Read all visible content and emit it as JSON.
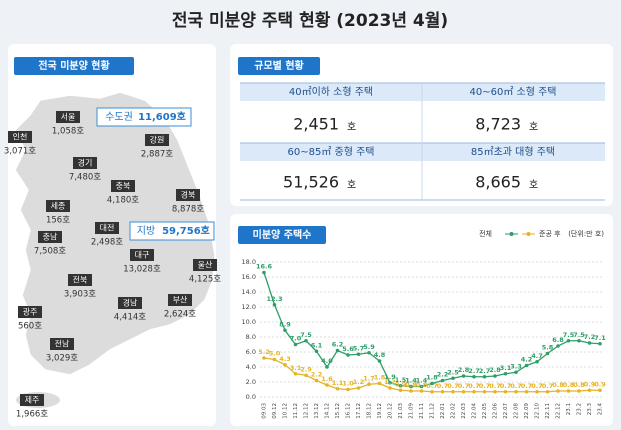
{
  "title": "전국 미분양 주택 현황 (2023년 4월)",
  "map": {
    "heading": "전국 미분양 현황",
    "capital": {
      "name": "수도권",
      "value": "11,609호"
    },
    "provinces": {
      "name": "지방",
      "value": "59,756호"
    },
    "regions": [
      {
        "name": "서울",
        "value": "1,058호"
      },
      {
        "name": "인천",
        "value": "3,071호"
      },
      {
        "name": "경기",
        "value": "7,480호"
      },
      {
        "name": "강원",
        "value": "2,887호"
      },
      {
        "name": "충북",
        "value": "4,180호"
      },
      {
        "name": "세종",
        "value": "156호"
      },
      {
        "name": "충남",
        "value": "7,508호"
      },
      {
        "name": "대전",
        "value": "2,498호"
      },
      {
        "name": "경북",
        "value": "8,878호"
      },
      {
        "name": "전북",
        "value": "3,903호"
      },
      {
        "name": "대구",
        "value": "13,028호"
      },
      {
        "name": "울산",
        "value": "4,125호"
      },
      {
        "name": "광주",
        "value": "560호"
      },
      {
        "name": "경남",
        "value": "4,414호"
      },
      {
        "name": "부산",
        "value": "2,624호"
      },
      {
        "name": "전남",
        "value": "3,029호"
      },
      {
        "name": "제주",
        "value": "1,966호"
      }
    ]
  },
  "size": {
    "heading": "규모별 현황",
    "items": [
      {
        "label": "40㎡이하 소형 주택",
        "value": "2,451",
        "unit": "호"
      },
      {
        "label": "40~60㎡ 소형 주택",
        "value": "8,723",
        "unit": "호"
      },
      {
        "label": "60~85㎡ 중형 주택",
        "value": "51,526",
        "unit": "호"
      },
      {
        "label": "85㎡초과 대형 주택",
        "value": "8,665",
        "unit": "호"
      }
    ]
  },
  "chart_data": {
    "type": "line",
    "title": "미분양 주택수",
    "note": "(단위:만 호)",
    "categories": [
      "09.03",
      "09.12",
      "10.12",
      "11.12",
      "12.12",
      "13.12",
      "14.12",
      "15.12",
      "16.12",
      "17.12",
      "18.12",
      "19.12",
      "20.12",
      "21.03",
      "21.09",
      "21.11",
      "21.12",
      "22.01",
      "22.02",
      "22.03",
      "22.04",
      "22.05",
      "22.06",
      "22.07",
      "22.08",
      "22.09",
      "22.10",
      "22.11",
      "22.12",
      "23.1",
      "23.2",
      "23.3",
      "23.4"
    ],
    "series": [
      {
        "name": "전체",
        "color": "#2e9e68",
        "values": [
          16.6,
          12.3,
          8.9,
          7.0,
          7.5,
          6.1,
          4.0,
          6.2,
          5.6,
          5.7,
          5.9,
          4.8,
          1.9,
          1.5,
          1.4,
          1.4,
          1.8,
          2.2,
          2.5,
          2.8,
          2.7,
          2.7,
          2.8,
          3.1,
          3.3,
          4.2,
          4.7,
          5.8,
          6.8,
          7.5,
          7.5,
          7.2,
          7.1
        ],
        "value_labels": [
          "16.6",
          "12.3",
          "8.9",
          "7.0",
          "7.5",
          "6.1",
          "4.0",
          "6.2",
          "5.6",
          "5.7",
          "5.9",
          "4.8",
          "1.9",
          "1.5",
          "1.4",
          "1.4",
          "1.8",
          "2.2",
          "2.5",
          "2.8",
          "2.7",
          "2.7",
          "2.8",
          "3.1",
          "3.3",
          "4.2",
          "4.7",
          "5.8",
          "6.8",
          "7.5",
          "7.5",
          "7.2",
          "7.1"
        ]
      },
      {
        "name": "준공 후",
        "color": "#e6b325",
        "values": [
          5.2,
          5.0,
          4.3,
          3.1,
          2.9,
          2.2,
          1.6,
          1.1,
          1.0,
          1.2,
          1.7,
          1.8,
          1.2,
          0.9,
          0.8,
          0.8,
          0.7,
          0.7,
          0.7,
          0.7,
          0.7,
          0.7,
          0.7,
          0.7,
          0.7,
          0.7,
          0.7,
          0.7,
          0.8,
          0.8,
          0.8,
          0.9,
          0.9
        ],
        "value_labels": [
          "5.2",
          "5.0",
          "4.3",
          "3.1",
          "2.9",
          "2.2",
          "1.6",
          "1.1",
          "1.0",
          "1.2",
          "1.7",
          "1.8",
          "1.2",
          "0.9",
          "0.8",
          "0.8",
          "0.7",
          "0.7",
          "0.7",
          "0.7",
          "0.7",
          "0.7",
          "0.7",
          "0.7",
          "0.7",
          "0.7",
          "0.7",
          "0.7",
          "0.8",
          "0.8",
          "0.8",
          "0.9",
          "0.9"
        ]
      }
    ],
    "ylim": [
      0,
      18
    ],
    "yticks": [
      {
        "value": 0,
        "label": "0.0"
      },
      {
        "value": 2,
        "label": "2.0"
      },
      {
        "value": 4,
        "label": "4.0"
      },
      {
        "value": 6,
        "label": "6.0"
      },
      {
        "value": 8,
        "label": "8.0"
      },
      {
        "value": 10,
        "label": "10.0"
      },
      {
        "value": 12,
        "label": "12.0"
      },
      {
        "value": 14,
        "label": "14.0"
      },
      {
        "value": 16,
        "label": "16.0"
      },
      {
        "value": 18,
        "label": "18.0"
      }
    ],
    "grid": true
  }
}
